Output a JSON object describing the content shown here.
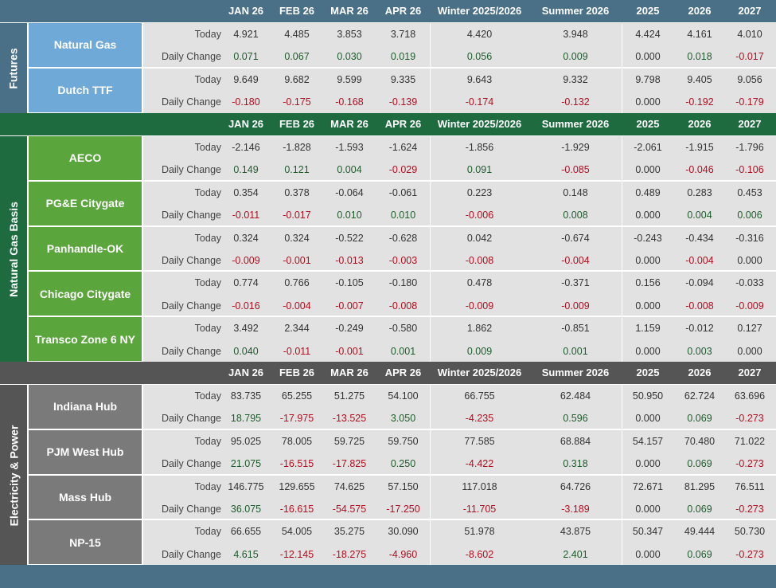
{
  "columns": [
    "JAN 26",
    "FEB 26",
    "MAR 26",
    "APR 26",
    "Winter 2025/2026",
    "Summer 2026",
    "2025",
    "2026",
    "2027"
  ],
  "row_labels": {
    "today": "Today",
    "change": "Daily Change"
  },
  "colors": {
    "futures_header": "#4a7088",
    "futures_side": "#4a7088",
    "futures_hub": "#6fa9d8",
    "basis_header": "#1e6b40",
    "basis_side": "#1e6b40",
    "basis_hub": "#5aa53c",
    "power_header": "#555555",
    "power_side": "#555555",
    "power_hub": "#7a7a7a",
    "table_bg": "#e2e2e2",
    "footer": "#4a7088",
    "positive": "#1f5c2c",
    "negative": "#b01020"
  },
  "sections": [
    {
      "name": "Futures",
      "hubs": [
        {
          "name": "Natural Gas",
          "today": [
            "4.921",
            "4.485",
            "3.853",
            "3.718",
            "4.420",
            "3.948",
            "4.424",
            "4.161",
            "4.010"
          ],
          "change": [
            "0.071",
            "0.067",
            "0.030",
            "0.019",
            "0.056",
            "0.009",
            "0.000",
            "0.018",
            "-0.017"
          ]
        },
        {
          "name": "Dutch TTF",
          "today": [
            "9.649",
            "9.682",
            "9.599",
            "9.335",
            "9.643",
            "9.332",
            "9.798",
            "9.405",
            "9.056"
          ],
          "change": [
            "-0.180",
            "-0.175",
            "-0.168",
            "-0.139",
            "-0.174",
            "-0.132",
            "0.000",
            "-0.192",
            "-0.179"
          ]
        }
      ]
    },
    {
      "name": "Natural Gas Basis",
      "hubs": [
        {
          "name": "AECO",
          "today": [
            "-2.146",
            "-1.828",
            "-1.593",
            "-1.624",
            "-1.856",
            "-1.929",
            "-2.061",
            "-1.915",
            "-1.796"
          ],
          "change": [
            "0.149",
            "0.121",
            "0.004",
            "-0.029",
            "0.091",
            "-0.085",
            "0.000",
            "-0.046",
            "-0.106"
          ]
        },
        {
          "name": "PG&E Citygate",
          "today": [
            "0.354",
            "0.378",
            "-0.064",
            "-0.061",
            "0.223",
            "0.148",
            "0.489",
            "0.283",
            "0.453"
          ],
          "change": [
            "-0.011",
            "-0.017",
            "0.010",
            "0.010",
            "-0.006",
            "0.008",
            "0.000",
            "0.004",
            "0.006"
          ]
        },
        {
          "name": "Panhandle-OK",
          "today": [
            "0.324",
            "0.324",
            "-0.522",
            "-0.628",
            "0.042",
            "-0.674",
            "-0.243",
            "-0.434",
            "-0.316"
          ],
          "change": [
            "-0.009",
            "-0.001",
            "-0.013",
            "-0.003",
            "-0.008",
            "-0.004",
            "0.000",
            "-0.004",
            "0.000"
          ]
        },
        {
          "name": "Chicago Citygate",
          "today": [
            "0.774",
            "0.766",
            "-0.105",
            "-0.180",
            "0.478",
            "-0.371",
            "0.156",
            "-0.094",
            "-0.033"
          ],
          "change": [
            "-0.016",
            "-0.004",
            "-0.007",
            "-0.008",
            "-0.009",
            "-0.009",
            "0.000",
            "-0.008",
            "-0.009"
          ]
        },
        {
          "name": "Transco Zone 6 NY",
          "today": [
            "3.492",
            "2.344",
            "-0.249",
            "-0.580",
            "1.862",
            "-0.851",
            "1.159",
            "-0.012",
            "0.127"
          ],
          "change": [
            "0.040",
            "-0.011",
            "-0.001",
            "0.001",
            "0.009",
            "0.001",
            "0.000",
            "0.003",
            "0.000"
          ]
        }
      ]
    },
    {
      "name": "Electricity & Power",
      "hubs": [
        {
          "name": "Indiana Hub",
          "today": [
            "83.735",
            "65.255",
            "51.275",
            "54.100",
            "66.755",
            "62.484",
            "50.950",
            "62.724",
            "63.696"
          ],
          "change": [
            "18.795",
            "-17.975",
            "-13.525",
            "3.050",
            "-4.235",
            "0.596",
            "0.000",
            "0.069",
            "-0.273"
          ]
        },
        {
          "name": "PJM West Hub",
          "today": [
            "95.025",
            "78.005",
            "59.725",
            "59.750",
            "77.585",
            "68.884",
            "54.157",
            "70.480",
            "71.022"
          ],
          "change": [
            "21.075",
            "-16.515",
            "-17.825",
            "0.250",
            "-4.422",
            "0.318",
            "0.000",
            "0.069",
            "-0.273"
          ]
        },
        {
          "name": "Mass Hub",
          "today": [
            "146.775",
            "129.655",
            "74.625",
            "57.150",
            "117.018",
            "64.726",
            "72.671",
            "81.295",
            "76.511"
          ],
          "change": [
            "36.075",
            "-16.615",
            "-54.575",
            "-17.250",
            "-11.705",
            "-3.189",
            "0.000",
            "0.069",
            "-0.273"
          ]
        },
        {
          "name": "NP-15",
          "today": [
            "66.655",
            "54.005",
            "35.275",
            "30.090",
            "51.978",
            "43.875",
            "50.347",
            "49.444",
            "50.730"
          ],
          "change": [
            "4.615",
            "-12.145",
            "-18.275",
            "-4.960",
            "-8.602",
            "2.401",
            "0.000",
            "0.069",
            "-0.273"
          ]
        }
      ]
    }
  ]
}
